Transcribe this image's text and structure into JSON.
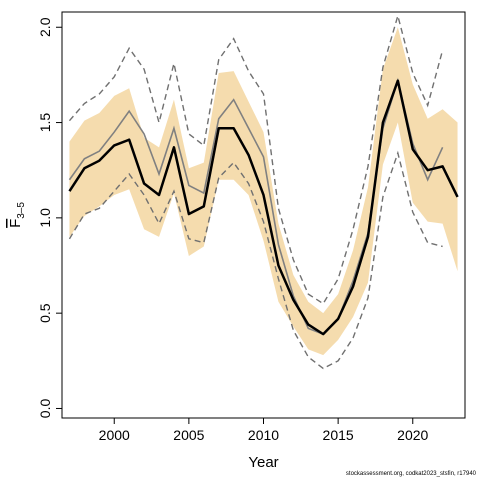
{
  "chart_data": {
    "type": "line",
    "xlabel": "Year",
    "ylabel": {
      "base": "F",
      "sub": "3–5"
    },
    "xlim": [
      1996.5,
      2023.5
    ],
    "ylim": [
      -0.05,
      2.08
    ],
    "xticks": [
      2000,
      2005,
      2010,
      2015,
      2020
    ],
    "yticks": [
      "0.0",
      "0.5",
      "1.0",
      "1.5",
      "2.0"
    ],
    "grid": false,
    "footnote": "stockassessment.org, codkat2023_stsfin, r17940",
    "colors": {
      "band": "#f5dcae",
      "current": "#000000",
      "previous": "#808080",
      "previous_ci": "#707070"
    },
    "series": [
      {
        "style": "band",
        "x": [
          1997,
          1998,
          1999,
          2000,
          2001,
          2002,
          2003,
          2004,
          2005,
          2006,
          2007,
          2008,
          2009,
          2010,
          2011,
          2012,
          2013,
          2014,
          2015,
          2016,
          2017,
          2018,
          2019,
          2020,
          2021,
          2022,
          2023
        ],
        "lower": [
          0.9,
          1.01,
          1.06,
          1.12,
          1.15,
          0.94,
          0.9,
          1.13,
          0.8,
          0.85,
          1.2,
          1.2,
          1.12,
          0.88,
          0.56,
          0.43,
          0.31,
          0.28,
          0.36,
          0.48,
          0.66,
          1.28,
          1.5,
          1.08,
          0.98,
          0.97,
          0.72
        ],
        "upper": [
          1.4,
          1.51,
          1.55,
          1.64,
          1.68,
          1.42,
          1.37,
          1.62,
          1.26,
          1.29,
          1.76,
          1.77,
          1.61,
          1.45,
          0.97,
          0.7,
          0.56,
          0.5,
          0.6,
          0.83,
          1.16,
          1.78,
          2.0,
          1.7,
          1.52,
          1.57,
          1.5
        ]
      },
      {
        "style": "previous-ci",
        "x": [
          1997,
          1998,
          1999,
          2000,
          2001,
          2002,
          2003,
          2004,
          2005,
          2006,
          2007,
          2008,
          2009,
          2010,
          2011,
          2012,
          2013,
          2014,
          2015,
          2016,
          2017,
          2018,
          2019,
          2020,
          2021,
          2022
        ],
        "lower": [
          0.89,
          1.02,
          1.05,
          1.14,
          1.23,
          1.12,
          0.97,
          1.14,
          0.89,
          0.87,
          1.21,
          1.29,
          1.18,
          0.98,
          0.68,
          0.41,
          0.27,
          0.21,
          0.25,
          0.37,
          0.58,
          1.11,
          1.34,
          1.03,
          0.87,
          0.85
        ],
        "upper": [
          1.51,
          1.6,
          1.65,
          1.74,
          1.89,
          1.78,
          1.5,
          1.81,
          1.44,
          1.38,
          1.83,
          1.94,
          1.77,
          1.65,
          1.05,
          0.78,
          0.6,
          0.55,
          0.68,
          0.94,
          1.27,
          1.79,
          2.06,
          1.76,
          1.59,
          1.88
        ]
      },
      {
        "style": "previous",
        "x": [
          1997,
          1998,
          1999,
          2000,
          2001,
          2002,
          2003,
          2004,
          2005,
          2006,
          2007,
          2008,
          2009,
          2010,
          2011,
          2012,
          2013,
          2014,
          2015,
          2016,
          2017,
          2018,
          2019,
          2020,
          2021,
          2022
        ],
        "values": [
          1.2,
          1.31,
          1.35,
          1.45,
          1.56,
          1.44,
          1.23,
          1.47,
          1.17,
          1.13,
          1.52,
          1.62,
          1.47,
          1.32,
          0.86,
          0.59,
          0.42,
          0.39,
          0.47,
          0.67,
          0.92,
          1.47,
          1.72,
          1.39,
          1.2,
          1.37
        ]
      },
      {
        "style": "current",
        "x": [
          1997,
          1998,
          1999,
          2000,
          2001,
          2002,
          2003,
          2004,
          2005,
          2006,
          2007,
          2008,
          2009,
          2010,
          2011,
          2012,
          2013,
          2014,
          2015,
          2016,
          2017,
          2018,
          2019,
          2020,
          2021,
          2022,
          2023
        ],
        "values": [
          1.14,
          1.26,
          1.3,
          1.38,
          1.41,
          1.18,
          1.12,
          1.37,
          1.02,
          1.06,
          1.47,
          1.47,
          1.33,
          1.12,
          0.75,
          0.57,
          0.44,
          0.39,
          0.47,
          0.64,
          0.9,
          1.5,
          1.72,
          1.36,
          1.25,
          1.27,
          1.11
        ]
      }
    ]
  }
}
